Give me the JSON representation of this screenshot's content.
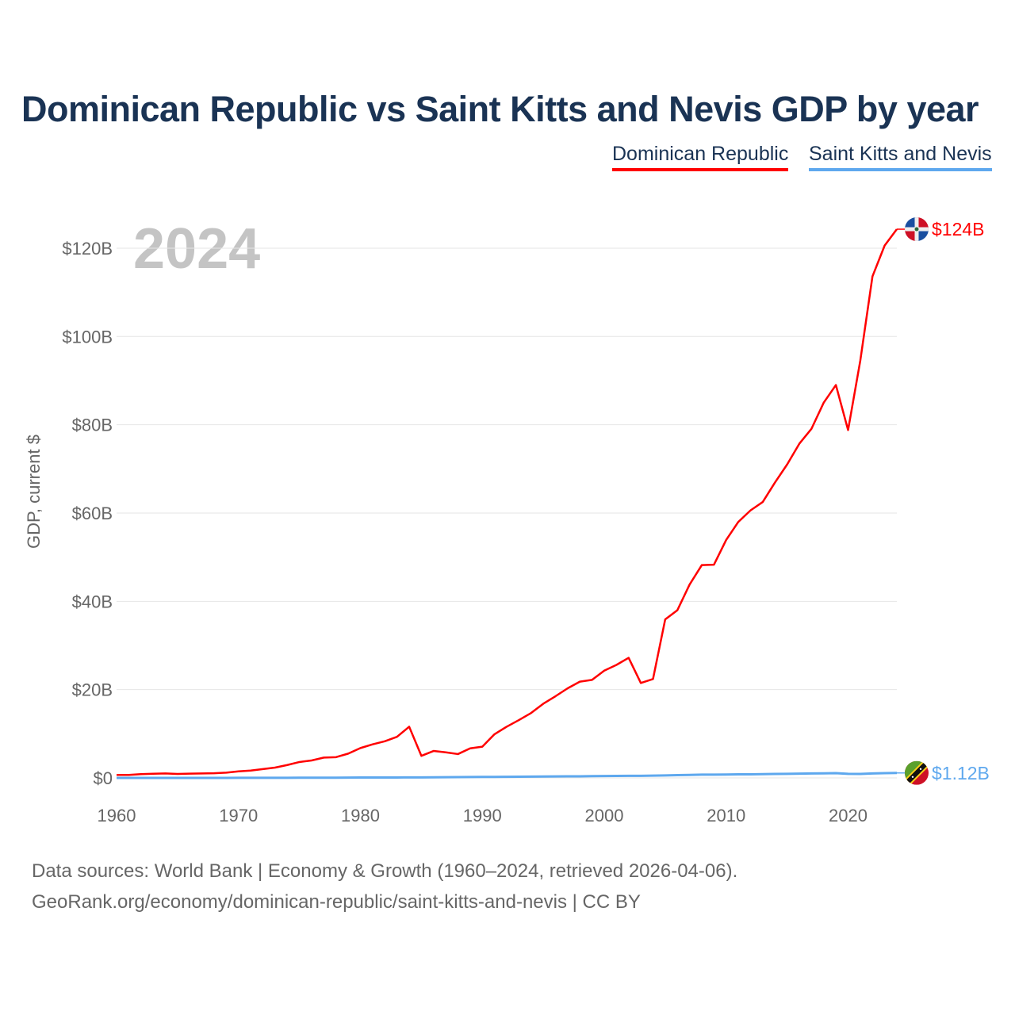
{
  "chart_data": {
    "type": "line",
    "title": "Dominican Republic vs Saint Kitts and Nevis GDP by year",
    "ylabel": "GDP, current $",
    "xlabel": "",
    "year_label": "2024",
    "xlim": [
      1960,
      2024
    ],
    "ylim": [
      0,
      125
    ],
    "x_ticks": [
      1960,
      1970,
      1980,
      1990,
      2000,
      2010,
      2020
    ],
    "y_ticks": [
      0,
      20,
      40,
      60,
      80,
      100,
      120
    ],
    "y_tick_labels": [
      "$0",
      "$20B",
      "$40B",
      "$60B",
      "$80B",
      "$100B",
      "$120B"
    ],
    "grid": true,
    "legend_position": "top-right",
    "x": [
      1960,
      1961,
      1962,
      1963,
      1964,
      1965,
      1966,
      1967,
      1968,
      1969,
      1970,
      1971,
      1972,
      1973,
      1974,
      1975,
      1976,
      1977,
      1978,
      1979,
      1980,
      1981,
      1982,
      1983,
      1984,
      1985,
      1986,
      1987,
      1988,
      1989,
      1990,
      1991,
      1992,
      1993,
      1994,
      1995,
      1996,
      1997,
      1998,
      1999,
      2000,
      2001,
      2002,
      2003,
      2004,
      2005,
      2006,
      2007,
      2008,
      2009,
      2010,
      2011,
      2012,
      2013,
      2014,
      2015,
      2016,
      2017,
      2018,
      2019,
      2020,
      2021,
      2022,
      2023,
      2024
    ],
    "series": [
      {
        "name": "Dominican Republic",
        "color": "#ff0000",
        "end_label": "$124B",
        "values": [
          0.67,
          0.68,
          0.85,
          0.95,
          1.0,
          0.9,
          0.97,
          1.0,
          1.05,
          1.2,
          1.49,
          1.66,
          1.99,
          2.34,
          2.92,
          3.6,
          3.95,
          4.6,
          4.7,
          5.5,
          6.76,
          7.6,
          8.3,
          9.3,
          11.6,
          5.0,
          6.1,
          5.8,
          5.4,
          6.7,
          7.07,
          9.9,
          11.6,
          13.1,
          14.7,
          16.8,
          18.5,
          20.3,
          21.8,
          22.2,
          24.3,
          25.6,
          27.2,
          21.5,
          22.4,
          35.9,
          38.0,
          43.8,
          48.2,
          48.3,
          53.9,
          58.0,
          60.6,
          62.5,
          66.9,
          71.0,
          75.7,
          79.1,
          85.0,
          89.0,
          78.8,
          94.5,
          113.6,
          120.6,
          124.3
        ]
      },
      {
        "name": "Saint Kitts and Nevis",
        "color": "#5ea8ee",
        "end_label": "$1.12B",
        "values": [
          0.01,
          0.01,
          0.01,
          0.01,
          0.01,
          0.01,
          0.01,
          0.01,
          0.01,
          0.01,
          0.02,
          0.02,
          0.02,
          0.03,
          0.03,
          0.04,
          0.04,
          0.05,
          0.05,
          0.06,
          0.08,
          0.09,
          0.09,
          0.1,
          0.11,
          0.12,
          0.14,
          0.16,
          0.18,
          0.2,
          0.22,
          0.23,
          0.25,
          0.27,
          0.29,
          0.31,
          0.33,
          0.36,
          0.37,
          0.4,
          0.42,
          0.45,
          0.47,
          0.47,
          0.51,
          0.56,
          0.62,
          0.68,
          0.75,
          0.74,
          0.76,
          0.81,
          0.8,
          0.85,
          0.9,
          0.93,
          0.97,
          1.0,
          1.04,
          1.08,
          0.92,
          0.9,
          1.0,
          1.07,
          1.12
        ]
      }
    ]
  },
  "footer": {
    "line1": "Data sources: World Bank | Economy & Growth (1960–2024, retrieved 2026-04-06).",
    "line2": "GeoRank.org/economy/dominican-republic/saint-kitts-and-nevis | CC BY"
  }
}
